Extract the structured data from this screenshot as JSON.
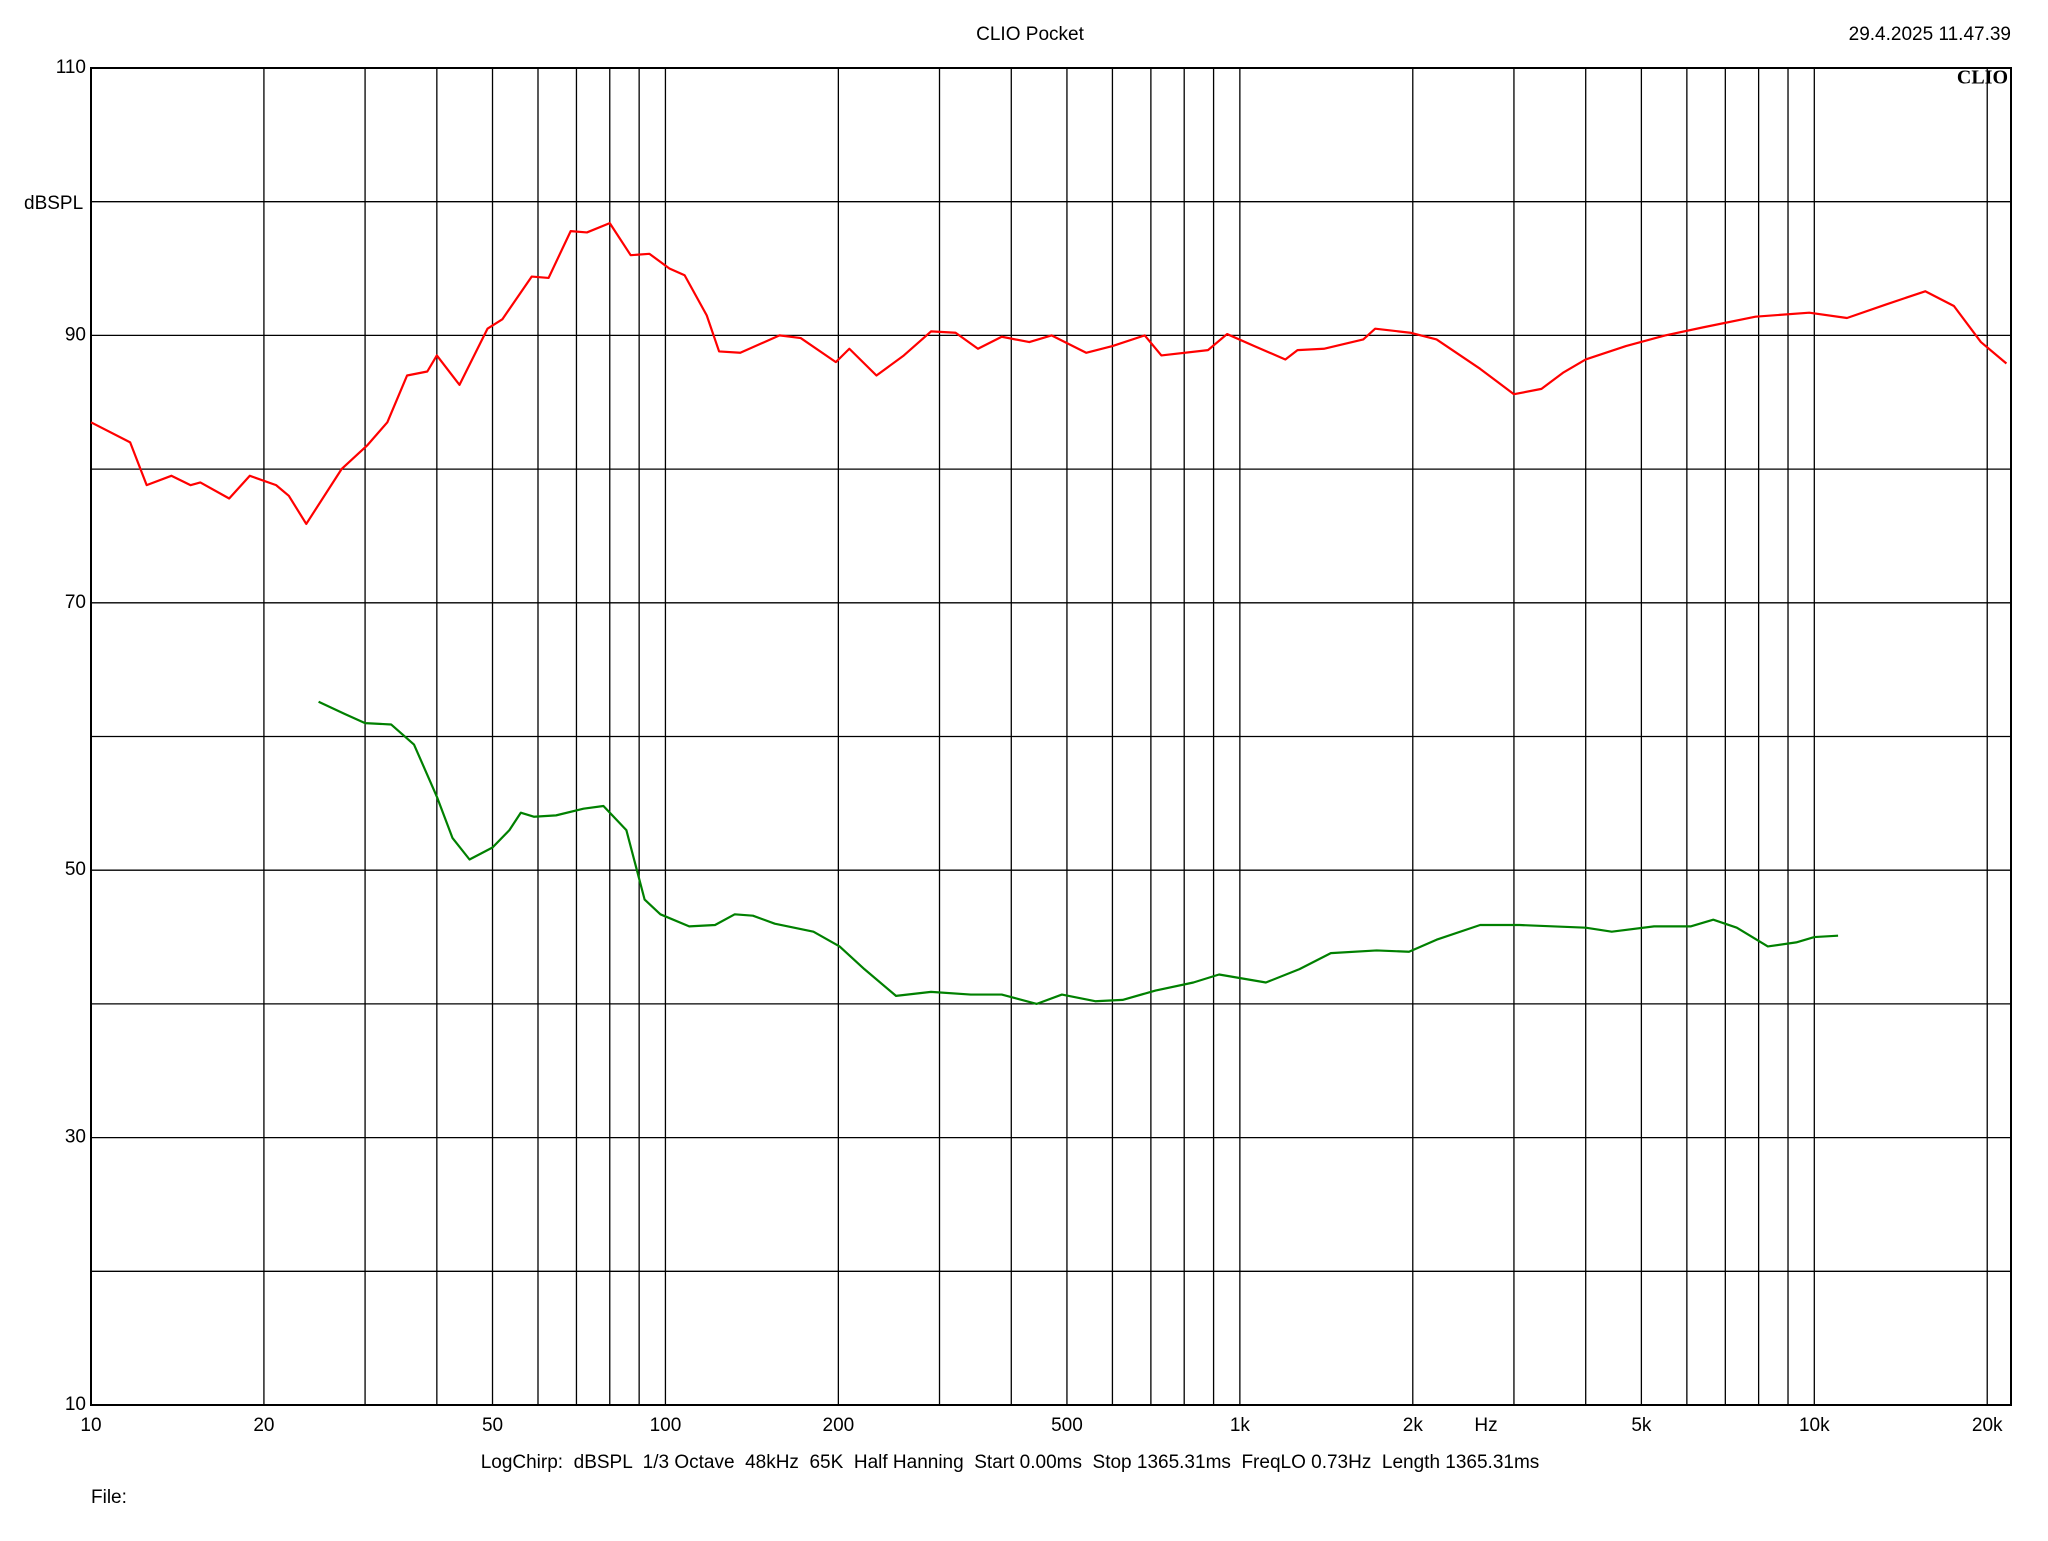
{
  "chart_data": {
    "type": "line",
    "title": "CLIO Pocket",
    "timestamp": "29.4.2025 11.47.39",
    "logo": "CLIO",
    "y_label": "dBSPL",
    "x_label": "Hz",
    "footer": "LogChirp:  dBSPL  1/3 Octave  48kHz  65K  Half Hanning  Start 0.00ms  Stop 1365.31ms  FreqLO 0.73Hz  Length 1365.31ms",
    "file_label": "File:",
    "x_log": true,
    "xlim": [
      10,
      22000
    ],
    "ylim": [
      10,
      110
    ],
    "xticks": [
      10,
      20,
      50,
      100,
      200,
      500,
      {
        "value": 1000,
        "label": "1k"
      },
      {
        "value": 2000,
        "label": "2k"
      },
      {
        "value": 5000,
        "label": "5k"
      },
      {
        "value": 10000,
        "label": "10k"
      },
      {
        "value": 20000,
        "label": "20k"
      }
    ],
    "x_minor_grid": [
      30,
      40,
      60,
      70,
      80,
      90,
      300,
      400,
      600,
      700,
      800,
      900,
      3000,
      4000,
      6000,
      7000,
      8000,
      9000
    ],
    "yticks": [
      10,
      30,
      50,
      70,
      90,
      110
    ],
    "y_minor_grid": [
      20,
      40,
      60,
      80,
      100
    ],
    "grid": true,
    "series": [
      {
        "color": "#ff0000",
        "x": [
          10,
          11.7,
          12.5,
          13.8,
          14.9,
          15.5,
          17.4,
          18.9,
          21,
          22.1,
          23.7,
          27.3,
          30.3,
          32.8,
          35.5,
          38.5,
          40,
          43.8,
          49,
          52,
          58.5,
          62.6,
          68.4,
          73,
          80,
          87,
          93.8,
          101.6,
          108,
          118,
          124,
          135,
          158,
          172,
          198,
          209,
          233,
          260,
          290,
          320,
          350,
          385,
          430,
          470,
          540,
          600,
          683,
          730,
          880,
          950,
          1060,
          1200,
          1260,
          1400,
          1640,
          1720,
          1980,
          2200,
          2620,
          3000,
          3350,
          3650,
          4000,
          4700,
          5500,
          6400,
          7900,
          9800,
          11400,
          13300,
          15600,
          17500,
          19500,
          21600
        ],
        "values": [
          83.5,
          82,
          78.8,
          79.5,
          78.8,
          79,
          77.8,
          79.5,
          78.8,
          78,
          75.9,
          80,
          81.8,
          83.5,
          87,
          87.3,
          88.5,
          86.3,
          90.5,
          91.2,
          94.4,
          94.3,
          97.8,
          97.7,
          98.4,
          96,
          96.1,
          95,
          94.5,
          91.5,
          88.8,
          88.7,
          90,
          89.8,
          88,
          89,
          87,
          88.5,
          90.3,
          90.2,
          89,
          89.9,
          89.5,
          90,
          88.7,
          89.2,
          90,
          88.5,
          88.9,
          90.1,
          89.2,
          88.2,
          88.9,
          89,
          89.7,
          90.5,
          90.2,
          89.7,
          87.5,
          85.6,
          86,
          87.2,
          88.2,
          89.2,
          90,
          90.6,
          91.4,
          91.7,
          91.3,
          92.3,
          93.3,
          92.2,
          89.5,
          87.9
        ]
      },
      {
        "color": "#008000",
        "x": [
          24.9,
          27.6,
          30,
          33.3,
          36.5,
          40,
          42.6,
          45.6,
          50,
          53.5,
          56,
          59,
          64.5,
          72,
          78,
          85.5,
          92,
          98,
          110,
          122,
          132,
          142,
          155,
          181,
          201,
          222,
          252,
          290,
          340,
          385,
          443,
          490,
          560,
          625,
          713,
          830,
          920,
          1110,
          1270,
          1440,
          1730,
          1970,
          2200,
          2620,
          3070,
          4000,
          4440,
          5260,
          6100,
          6670,
          7330,
          8300,
          9300,
          10000,
          11000
        ],
        "values": [
          62.6,
          61.7,
          61,
          60.9,
          59.4,
          55.5,
          52.4,
          50.8,
          51.7,
          53,
          54.3,
          54,
          54.1,
          54.6,
          54.8,
          53,
          47.8,
          46.7,
          45.8,
          45.9,
          46.7,
          46.6,
          46,
          45.4,
          44.3,
          42.6,
          40.6,
          40.9,
          40.7,
          40.7,
          40,
          40.7,
          40.2,
          40.3,
          41,
          41.6,
          42.2,
          41.6,
          42.6,
          43.8,
          44,
          43.9,
          44.8,
          45.9,
          45.9,
          45.7,
          45.4,
          45.8,
          45.8,
          46.3,
          45.7,
          44.3,
          44.6,
          45,
          45.1
        ]
      }
    ]
  }
}
